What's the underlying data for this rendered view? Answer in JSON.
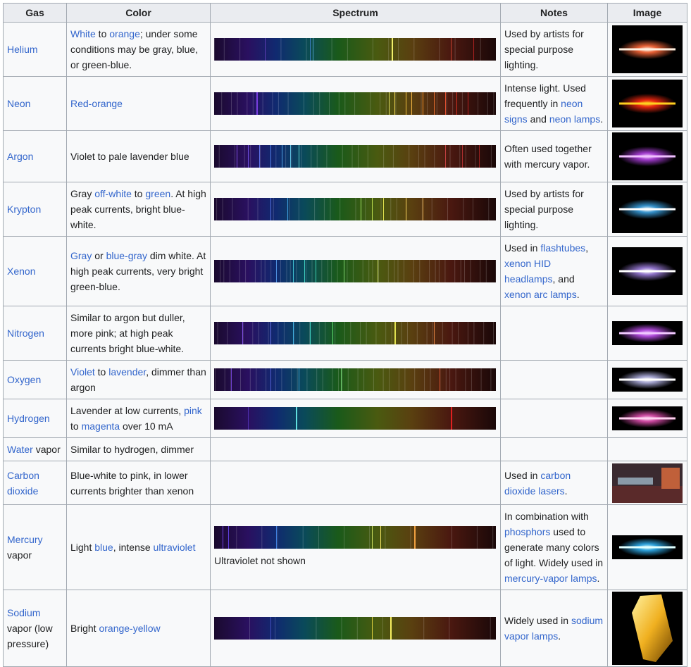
{
  "headers": [
    "Gas",
    "Color",
    "Spectrum",
    "Notes",
    "Image"
  ],
  "rows": [
    {
      "gas": [
        {
          "t": "Helium",
          "link": true
        }
      ],
      "color": [
        {
          "t": "White",
          "link": true
        },
        {
          "t": " to ",
          "link": false
        },
        {
          "t": "orange",
          "link": true
        },
        {
          "t": "; under some conditions may be gray, blue, or green-blue.",
          "link": false
        }
      ],
      "spectrum": {
        "lines": [
          {
            "pos": 0.63,
            "color": "#f2f06a",
            "w": 2
          },
          {
            "pos": 0.35,
            "color": "#4aa0c0",
            "w": 1
          },
          {
            "pos": 0.34,
            "color": "#3b7fc4",
            "w": 1
          },
          {
            "pos": 0.18,
            "color": "#5a3ab0",
            "w": 1
          },
          {
            "pos": 0.84,
            "color": "#c84030",
            "w": 1
          },
          {
            "pos": 0.92,
            "color": "#a82020",
            "w": 1
          }
        ],
        "dense": 0.25,
        "note": ""
      },
      "notes": [
        {
          "t": "Used by artists for special purpose lighting.",
          "link": false
        }
      ],
      "image": {
        "glow": "#ff6a3a",
        "core": "#fff0e0",
        "h": 68
      }
    },
    {
      "gas": [
        {
          "t": "Neon",
          "link": true
        }
      ],
      "color": [
        {
          "t": "Red-orange",
          "link": true
        }
      ],
      "spectrum": {
        "lines": [
          {
            "pos": 0.15,
            "color": "#7a40e0",
            "w": 2
          },
          {
            "pos": 0.62,
            "color": "#e0e060",
            "w": 1
          },
          {
            "pos": 0.64,
            "color": "#e8d050",
            "w": 1
          },
          {
            "pos": 0.68,
            "color": "#f0c040",
            "w": 1
          },
          {
            "pos": 0.7,
            "color": "#f0b040",
            "w": 1
          },
          {
            "pos": 0.74,
            "color": "#f09030",
            "w": 1
          },
          {
            "pos": 0.78,
            "color": "#e87030",
            "w": 1
          },
          {
            "pos": 0.82,
            "color": "#e05030",
            "w": 1
          },
          {
            "pos": 0.86,
            "color": "#d03020",
            "w": 1
          },
          {
            "pos": 0.9,
            "color": "#c02020",
            "w": 1
          }
        ],
        "dense": 0.5,
        "note": ""
      },
      "notes": [
        {
          "t": "Intense light. Used frequently in ",
          "link": false
        },
        {
          "t": "neon signs",
          "link": true
        },
        {
          "t": " and ",
          "link": false
        },
        {
          "t": "neon lamps",
          "link": true
        },
        {
          "t": ".",
          "link": false
        }
      ],
      "image": {
        "glow": "#ff2a10",
        "core": "#ffd020",
        "h": 68
      }
    },
    {
      "gas": [
        {
          "t": "Argon",
          "link": true
        }
      ],
      "color": [
        {
          "t": "Violet to pale lavender blue",
          "link": false
        }
      ],
      "spectrum": {
        "lines": [
          {
            "pos": 0.08,
            "color": "#8050e0",
            "w": 1
          },
          {
            "pos": 0.12,
            "color": "#7050e0",
            "w": 1
          },
          {
            "pos": 0.16,
            "color": "#6070e8",
            "w": 1
          },
          {
            "pos": 0.2,
            "color": "#5080e8",
            "w": 1
          },
          {
            "pos": 0.24,
            "color": "#50a0e0",
            "w": 1
          },
          {
            "pos": 0.27,
            "color": "#60c0e0",
            "w": 1
          },
          {
            "pos": 0.3,
            "color": "#60d0d0",
            "w": 1
          },
          {
            "pos": 0.82,
            "color": "#c04040",
            "w": 1
          },
          {
            "pos": 0.88,
            "color": "#b03030",
            "w": 1
          },
          {
            "pos": 0.94,
            "color": "#a02020",
            "w": 1
          }
        ],
        "dense": 0.45,
        "note": ""
      },
      "notes": [
        {
          "t": "Often used together with mercury vapor.",
          "link": false
        }
      ],
      "image": {
        "glow": "#b040e0",
        "core": "#f0c0ff",
        "h": 68
      }
    },
    {
      "gas": [
        {
          "t": "Krypton",
          "link": true
        }
      ],
      "color": [
        {
          "t": "Gray ",
          "link": false
        },
        {
          "t": "off-white",
          "link": true
        },
        {
          "t": " to ",
          "link": false
        },
        {
          "t": "green",
          "link": true
        },
        {
          "t": ". At high peak currents, bright blue-white.",
          "link": false
        }
      ],
      "spectrum": {
        "lines": [
          {
            "pos": 0.2,
            "color": "#5070e0",
            "w": 1
          },
          {
            "pos": 0.26,
            "color": "#40a0e0",
            "w": 1
          },
          {
            "pos": 0.52,
            "color": "#a0e060",
            "w": 1
          },
          {
            "pos": 0.56,
            "color": "#c0e050",
            "w": 1
          },
          {
            "pos": 0.6,
            "color": "#e0e050",
            "w": 1
          },
          {
            "pos": 0.68,
            "color": "#e8c040",
            "w": 1
          },
          {
            "pos": 0.74,
            "color": "#e0a040",
            "w": 1
          }
        ],
        "dense": 0.4,
        "note": ""
      },
      "notes": [
        {
          "t": "Used by artists for special purpose lighting.",
          "link": false
        }
      ],
      "image": {
        "glow": "#3aa0e0",
        "core": "#ffffff",
        "h": 68
      }
    },
    {
      "gas": [
        {
          "t": "Xenon",
          "link": true
        }
      ],
      "color": [
        {
          "t": "Gray",
          "link": true
        },
        {
          "t": " or ",
          "link": false
        },
        {
          "t": "blue-gray",
          "link": true
        },
        {
          "t": " dim white. At high peak currents, very bright green-blue.",
          "link": false
        }
      ],
      "spectrum": {
        "lines": [
          {
            "pos": 0.22,
            "color": "#5090e0",
            "w": 1
          },
          {
            "pos": 0.28,
            "color": "#40c0d0",
            "w": 1
          },
          {
            "pos": 0.32,
            "color": "#40d0c0",
            "w": 1
          },
          {
            "pos": 0.36,
            "color": "#40d0b0",
            "w": 1
          },
          {
            "pos": 0.46,
            "color": "#80d070",
            "w": 1
          },
          {
            "pos": 0.58,
            "color": "#c0d060",
            "w": 1
          }
        ],
        "dense": 0.7,
        "note": ""
      },
      "notes": [
        {
          "t": "Used in ",
          "link": false
        },
        {
          "t": "flashtubes",
          "link": true
        },
        {
          "t": ", ",
          "link": false
        },
        {
          "t": "xenon HID headlamps",
          "link": true
        },
        {
          "t": ", and ",
          "link": false
        },
        {
          "t": "xenon arc lamps",
          "link": true
        },
        {
          "t": ".",
          "link": false
        }
      ],
      "image": {
        "glow": "#a080e0",
        "core": "#ffffff",
        "h": 68
      }
    },
    {
      "gas": [
        {
          "t": "Nitrogen",
          "link": true
        }
      ],
      "color": [
        {
          "t": "Similar to argon but duller, more pink; at high peak currents bright blue-white.",
          "link": false
        }
      ],
      "spectrum": {
        "lines": [
          {
            "pos": 0.1,
            "color": "#8050e0",
            "w": 1
          },
          {
            "pos": 0.2,
            "color": "#6070e0",
            "w": 1
          },
          {
            "pos": 0.28,
            "color": "#40b0e0",
            "w": 1
          },
          {
            "pos": 0.34,
            "color": "#40d0c0",
            "w": 1
          },
          {
            "pos": 0.42,
            "color": "#60e070",
            "w": 1
          },
          {
            "pos": 0.64,
            "color": "#e0e050",
            "w": 2
          },
          {
            "pos": 0.78,
            "color": "#e08040",
            "w": 1
          }
        ],
        "dense": 0.55,
        "note": ""
      },
      "notes": [],
      "image": {
        "glow": "#c050f0",
        "core": "#f0c8ff",
        "h": 34
      }
    },
    {
      "gas": [
        {
          "t": "Oxygen",
          "link": true
        }
      ],
      "color": [
        {
          "t": "Violet",
          "link": true
        },
        {
          "t": " to ",
          "link": false
        },
        {
          "t": "lavender",
          "link": true
        },
        {
          "t": ", dimmer than argon",
          "link": false
        }
      ],
      "spectrum": {
        "lines": [
          {
            "pos": 0.06,
            "color": "#7040d0",
            "w": 1
          },
          {
            "pos": 0.2,
            "color": "#5060d0",
            "w": 1
          },
          {
            "pos": 0.3,
            "color": "#40a0d0",
            "w": 1
          },
          {
            "pos": 0.45,
            "color": "#70d070",
            "w": 1
          },
          {
            "pos": 0.8,
            "color": "#d05030",
            "w": 1
          }
        ],
        "dense": 0.6,
        "note": ""
      },
      "notes": [],
      "image": {
        "glow": "#b0b0e0",
        "core": "#ffffff",
        "h": 34
      }
    },
    {
      "gas": [
        {
          "t": "Hydrogen",
          "link": true
        }
      ],
      "color": [
        {
          "t": "Lavender at low currents, ",
          "link": false
        },
        {
          "t": "pink",
          "link": true
        },
        {
          "t": " to ",
          "link": false
        },
        {
          "t": "magenta",
          "link": true
        },
        {
          "t": " over 10 mA",
          "link": false
        }
      ],
      "spectrum": {
        "lines": [
          {
            "pos": 0.12,
            "color": "#5030b0",
            "w": 1
          },
          {
            "pos": 0.29,
            "color": "#60e0e0",
            "w": 2
          },
          {
            "pos": 0.84,
            "color": "#e02020",
            "w": 2
          }
        ],
        "dense": 0,
        "note": ""
      },
      "notes": [],
      "image": {
        "glow": "#e050b0",
        "core": "#ffd0f0",
        "h": 34
      }
    },
    {
      "gas": [
        {
          "t": "Water",
          "link": true
        },
        {
          "t": " vapor",
          "link": false
        }
      ],
      "color": [
        {
          "t": "Similar to hydrogen, dimmer",
          "link": false
        }
      ],
      "spectrum": null,
      "notes": [],
      "image": null
    },
    {
      "gas": [
        {
          "t": "Carbon dioxide",
          "link": true
        }
      ],
      "color": [
        {
          "t": "Blue-white to pink, in lower currents brighter than xenon",
          "link": false
        }
      ],
      "spectrum": null,
      "notes": [
        {
          "t": "Used in ",
          "link": false
        },
        {
          "t": "carbon dioxide lasers",
          "link": true
        },
        {
          "t": ".",
          "link": false
        }
      ],
      "image": {
        "photo": true,
        "h": 56
      }
    },
    {
      "gas": [
        {
          "t": "Mercury",
          "link": true
        },
        {
          "t": " vapor",
          "link": false
        }
      ],
      "color": [
        {
          "t": "Light ",
          "link": false
        },
        {
          "t": "blue",
          "link": true
        },
        {
          "t": ", intense ",
          "link": false
        },
        {
          "t": "ultraviolet",
          "link": true
        }
      ],
      "spectrum": {
        "lines": [
          {
            "pos": 0.03,
            "color": "#7040e0",
            "w": 1
          },
          {
            "pos": 0.05,
            "color": "#6040e0",
            "w": 1
          },
          {
            "pos": 0.22,
            "color": "#4080e0",
            "w": 1
          },
          {
            "pos": 0.56,
            "color": "#d0e060",
            "w": 1
          },
          {
            "pos": 0.59,
            "color": "#f0e060",
            "w": 1
          },
          {
            "pos": 0.71,
            "color": "#f0a040",
            "w": 2
          }
        ],
        "dense": 0.2,
        "note": "Ultraviolet not shown"
      },
      "notes": [
        {
          "t": "In combination with ",
          "link": false
        },
        {
          "t": "phosphors",
          "link": true
        },
        {
          "t": " used to generate many colors of light. Widely used in ",
          "link": false
        },
        {
          "t": "mercury-vapor lamps",
          "link": true
        },
        {
          "t": ".",
          "link": false
        }
      ],
      "image": {
        "glow": "#30b0f0",
        "core": "#e0ffff",
        "h": 34
      }
    },
    {
      "gas": [
        {
          "t": "Sodium",
          "link": true
        },
        {
          "t": " vapor (low pressure)",
          "link": false
        }
      ],
      "color": [
        {
          "t": "Bright ",
          "link": false
        },
        {
          "t": "orange-yellow",
          "link": true
        }
      ],
      "spectrum": {
        "lines": [
          {
            "pos": 0.56,
            "color": "#e0d040",
            "w": 1
          },
          {
            "pos": 0.625,
            "color": "#f8f060",
            "w": 2
          },
          {
            "pos": 0.2,
            "color": "#4050c0",
            "w": 1
          }
        ],
        "dense": 0.15,
        "note": ""
      },
      "notes": [
        {
          "t": "Widely used in ",
          "link": false
        },
        {
          "t": "sodium vapor lamps",
          "link": true
        },
        {
          "t": ".",
          "link": false
        }
      ],
      "image": {
        "sodium": true,
        "h": 104
      }
    }
  ],
  "colors": {
    "link": "#3366cc",
    "header_bg": "#eaecf0",
    "cell_bg": "#f8f9fa",
    "border": "#a2a9b1"
  }
}
